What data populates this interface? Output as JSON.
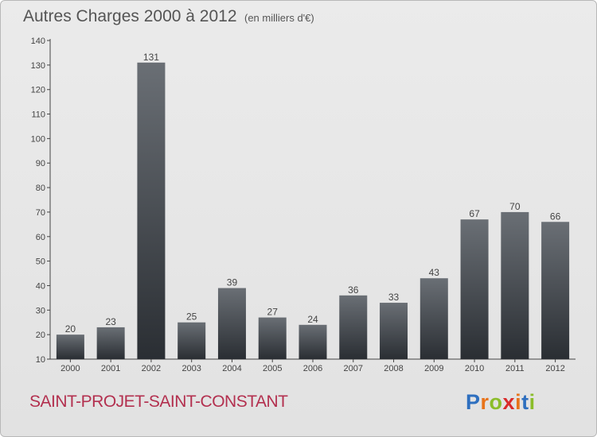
{
  "header": {
    "title": "Autres Charges 2000 à 2012",
    "subtitle": "(en milliers d'€)"
  },
  "footer": {
    "commune": "SAINT-PROJET-SAINT-CONSTANT",
    "logo_letters": [
      "P",
      "r",
      "o",
      "x",
      "i",
      "t",
      "i"
    ],
    "logo_colors": [
      "#2e6fbf",
      "#e8731a",
      "#8bbd2a",
      "#d92b2b",
      "#e8731a",
      "#2e6fbf",
      "#8bbd2a"
    ]
  },
  "colors": {
    "bar_top": "#6a6f75",
    "bar_bottom": "#2a2e33",
    "commune_text": "#b3304f"
  },
  "chart_data": {
    "type": "bar",
    "categories": [
      "2000",
      "2001",
      "2002",
      "2003",
      "2004",
      "2005",
      "2006",
      "2007",
      "2008",
      "2009",
      "2010",
      "2011",
      "2012"
    ],
    "values": [
      20,
      23,
      131,
      25,
      39,
      27,
      24,
      36,
      33,
      43,
      67,
      70,
      66
    ],
    "title": "Autres Charges 2000 à 2012",
    "subtitle": "(en milliers d'€)",
    "ylim": [
      10,
      140
    ],
    "yticks": [
      10,
      20,
      30,
      40,
      50,
      60,
      70,
      80,
      90,
      100,
      110,
      120,
      130,
      140
    ],
    "xlabel": "",
    "ylabel": "",
    "grid": false,
    "data_labels": true
  }
}
